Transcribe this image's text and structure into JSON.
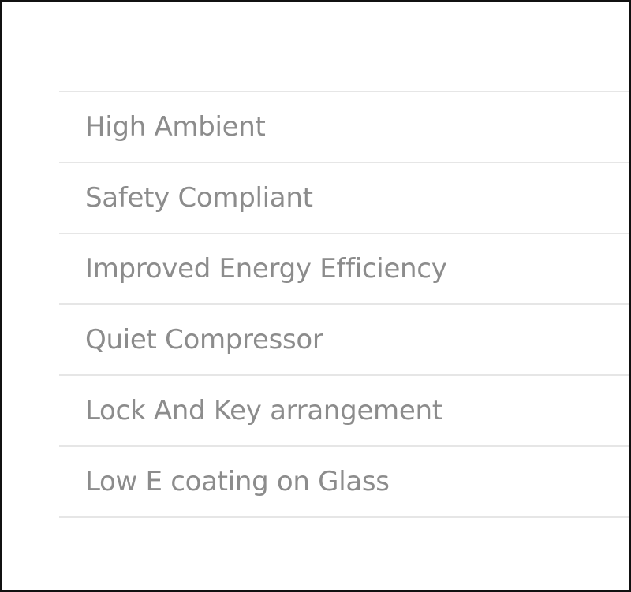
{
  "features": [
    {
      "label": "High Ambient"
    },
    {
      "label": "Safety Compliant"
    },
    {
      "label": "Improved Energy Efficiency"
    },
    {
      "label": "Quiet Compressor"
    },
    {
      "label": "Lock And Key arrangement"
    },
    {
      "label": "Low E coating on Glass"
    }
  ]
}
